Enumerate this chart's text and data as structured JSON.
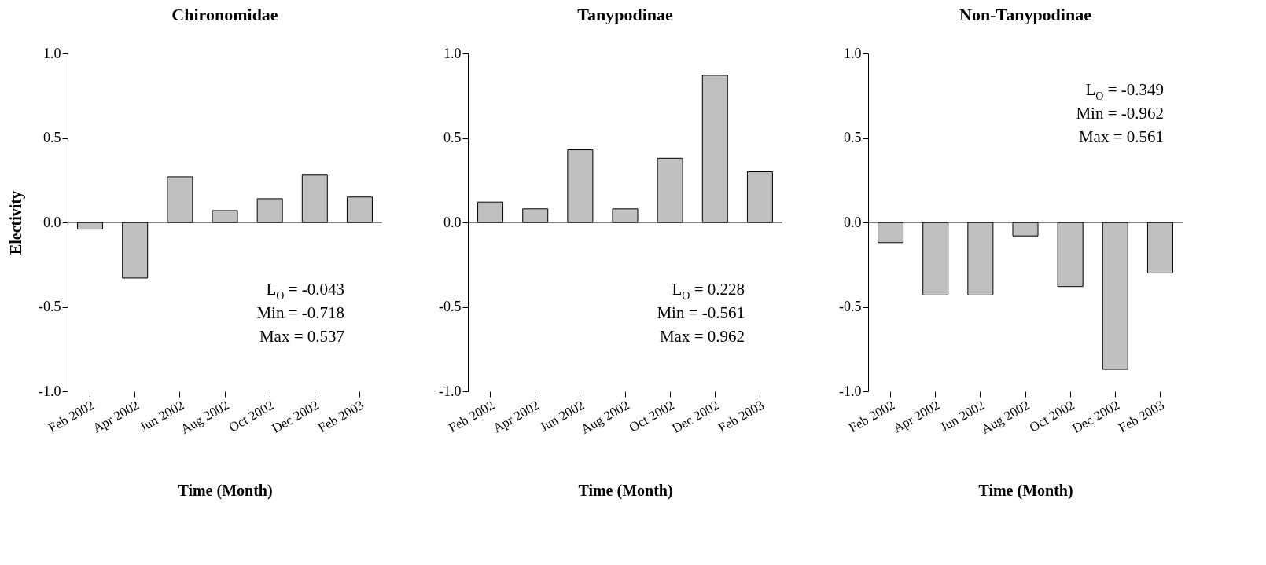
{
  "chart_data": [
    {
      "type": "bar",
      "title": "Chironomidae",
      "xlabel": "Time (Month)",
      "ylabel": "Electivity",
      "categories": [
        "Feb 2002",
        "Apr 2002",
        "Jun 2002",
        "Aug 2002",
        "Oct 2002",
        "Dec 2002",
        "Feb 2003"
      ],
      "series": [
        {
          "color": "#c0c0c0",
          "values": [
            -0.04,
            -0.33,
            0.27,
            0.07,
            0.14,
            0.28,
            0.15
          ]
        }
      ],
      "ylim": [
        -1,
        1
      ],
      "yticks": [
        {
          "value": -1,
          "label": "-1.0"
        },
        {
          "value": -0.5,
          "label": "-0.5"
        },
        {
          "value": 0,
          "label": "0.0"
        },
        {
          "value": 0.5,
          "label": "0.5"
        },
        {
          "value": 1,
          "label": "1.0"
        }
      ],
      "ref_lines": [
        {
          "axis": "y",
          "value": 0,
          "color": "#000000"
        }
      ],
      "annotations": [
        "L$_{O}$ = -0.043",
        "Min = -0.718",
        "Max = 0.537"
      ],
      "grid": false,
      "legend": false
    },
    {
      "type": "bar",
      "title": "Tanypodinae",
      "xlabel": "Time (Month)",
      "categories": [
        "Feb 2002",
        "Apr 2002",
        "Jun 2002",
        "Aug 2002",
        "Oct 2002",
        "Dec 2002",
        "Feb 2003"
      ],
      "series": [
        {
          "color": "#c0c0c0",
          "values": [
            0.12,
            0.08,
            0.43,
            0.08,
            0.38,
            0.87,
            0.3
          ]
        }
      ],
      "ylim": [
        -1,
        1
      ],
      "yticks": [
        {
          "value": -1,
          "label": "-1.0"
        },
        {
          "value": -0.5,
          "label": "-0.5"
        },
        {
          "value": 0,
          "label": "0.0"
        },
        {
          "value": 0.5,
          "label": "0.5"
        },
        {
          "value": 1,
          "label": "1.0"
        }
      ],
      "ref_lines": [
        {
          "axis": "y",
          "value": 0,
          "color": "#000000"
        }
      ],
      "annotations": [
        "L$_{O}$ = 0.228",
        "Min = -0.561",
        "Max = 0.962"
      ],
      "grid": false,
      "legend": false
    },
    {
      "type": "bar",
      "title": "Non-Tanypodinae",
      "xlabel": "Time (Month)",
      "categories": [
        "Feb 2002",
        "Apr 2002",
        "Jun 2002",
        "Aug 2002",
        "Oct 2002",
        "Dec 2002",
        "Feb 2003"
      ],
      "series": [
        {
          "color": "#c0c0c0",
          "values": [
            -0.12,
            -0.43,
            -0.43,
            -0.08,
            -0.38,
            -0.87,
            -0.3
          ]
        }
      ],
      "ylim": [
        -1,
        1
      ],
      "yticks": [
        {
          "value": -1,
          "label": "-1.0"
        },
        {
          "value": -0.5,
          "label": "-0.5"
        },
        {
          "value": 0,
          "label": "0.0"
        },
        {
          "value": 0.5,
          "label": "0.5"
        },
        {
          "value": 1,
          "label": "1.0"
        }
      ],
      "ref_lines": [
        {
          "axis": "y",
          "value": 0,
          "color": "#000000"
        }
      ],
      "annotations": [
        "L$_{O}$ = -0.349",
        "Min = -0.962",
        "Max = 0.561"
      ],
      "grid": false,
      "legend": false
    }
  ]
}
